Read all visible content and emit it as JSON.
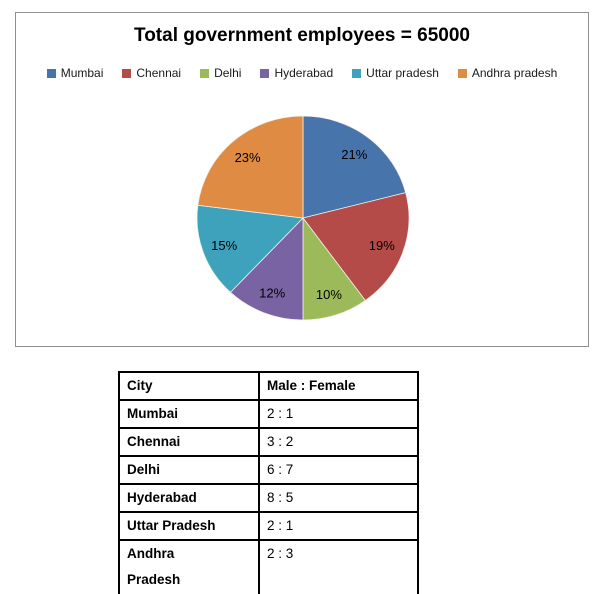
{
  "chart_data": {
    "type": "pie",
    "title": "Total government employees = 65000",
    "total": 65000,
    "categories": [
      "Mumbai",
      "Chennai",
      "Delhi",
      "Hyderabad",
      "Uttar pradesh",
      "Andhra pradesh"
    ],
    "values": [
      21,
      19,
      10,
      12,
      15,
      23
    ],
    "value_unit": "percent",
    "slice_labels": [
      "21%",
      "19%",
      "10%",
      "12%",
      "15%",
      "23%"
    ],
    "colors": [
      "#4874AC",
      "#B54B48",
      "#9DBA5A",
      "#7A63A2",
      "#3FA2BC",
      "#DF8B43"
    ],
    "start_angle_deg": 0,
    "direction": "clockwise",
    "legend_position": "top",
    "grid": "off"
  },
  "table": {
    "headers": [
      "City",
      "Male : Female"
    ],
    "rows": [
      {
        "city": "Mumbai",
        "ratio": "2 : 1"
      },
      {
        "city": "Chennai",
        "ratio": "3 : 2"
      },
      {
        "city": "Delhi",
        "ratio": "6 : 7"
      },
      {
        "city": "Hyderabad",
        "ratio": "8 : 5"
      },
      {
        "city": "Uttar Pradesh",
        "ratio": "2 : 1"
      },
      {
        "city": "Andhra\nPradesh",
        "ratio": "2 : 3"
      }
    ]
  }
}
